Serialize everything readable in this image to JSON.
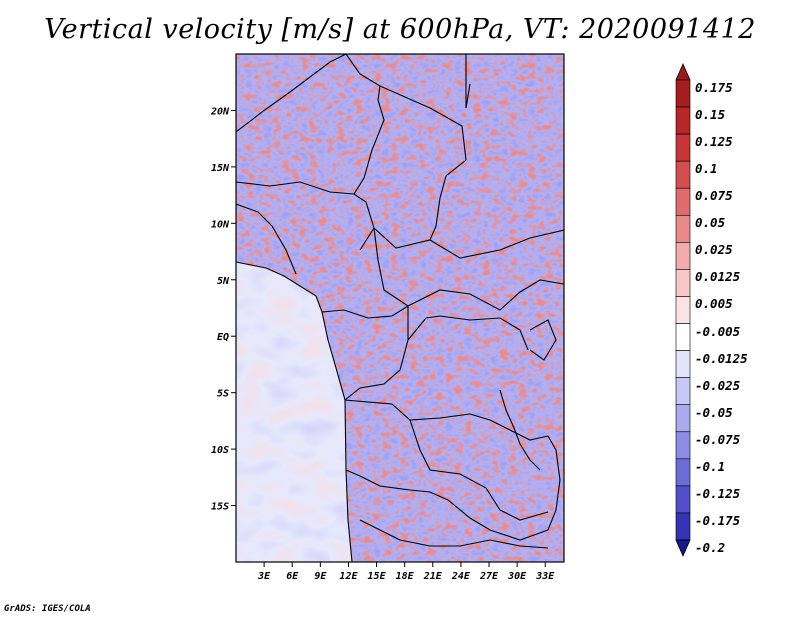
{
  "title": "Vertical velocity [m/s] at 600hPa, VT: 2020091412",
  "credit": "GrADS: IGES/COLA",
  "colors": {
    "frame": "#000000",
    "ocean_base": "#e6e8fb",
    "land_base": "#b3b0f2"
  },
  "map": {
    "lon_range": [
      0,
      35
    ],
    "lat_range": [
      -20,
      25
    ],
    "lat_ticks": [
      {
        "value": 20,
        "label": "20N"
      },
      {
        "value": 15,
        "label": "15N"
      },
      {
        "value": 10,
        "label": "10N"
      },
      {
        "value": 5,
        "label": "5N"
      },
      {
        "value": 0,
        "label": "EQ"
      },
      {
        "value": -5,
        "label": "5S"
      },
      {
        "value": -10,
        "label": "10S"
      },
      {
        "value": -15,
        "label": "15S"
      }
    ],
    "lon_ticks": [
      {
        "value": 3,
        "label": "3E"
      },
      {
        "value": 6,
        "label": "6E"
      },
      {
        "value": 9,
        "label": "9E"
      },
      {
        "value": 12,
        "label": "12E"
      },
      {
        "value": 15,
        "label": "15E"
      },
      {
        "value": 18,
        "label": "18E"
      },
      {
        "value": 21,
        "label": "21E"
      },
      {
        "value": 24,
        "label": "24E"
      },
      {
        "value": 27,
        "label": "27E"
      },
      {
        "value": 30,
        "label": "30E"
      },
      {
        "value": 33,
        "label": "33E"
      }
    ]
  },
  "colorbar": {
    "levels": [
      {
        "label": "0.175",
        "color": "#a51d1d"
      },
      {
        "label": "0.15",
        "color": "#b62727"
      },
      {
        "label": "0.125",
        "color": "#c63636"
      },
      {
        "label": "0.1",
        "color": "#d54d4d"
      },
      {
        "label": "0.075",
        "color": "#e06b6b"
      },
      {
        "label": "0.05",
        "color": "#e98a8a"
      },
      {
        "label": "0.025",
        "color": "#f2aaaa"
      },
      {
        "label": "0.0125",
        "color": "#f8c8c8"
      },
      {
        "label": "0.005",
        "color": "#fce3e3"
      },
      {
        "label": "-0.005",
        "color": "#ffffff"
      },
      {
        "label": "-0.0125",
        "color": "#e3e3fb"
      },
      {
        "label": "-0.025",
        "color": "#c8c8f6"
      },
      {
        "label": "-0.05",
        "color": "#aaaaef"
      },
      {
        "label": "-0.075",
        "color": "#8c8ce6"
      },
      {
        "label": "-0.1",
        "color": "#6d6dda"
      },
      {
        "label": "-0.125",
        "color": "#4f4fcb"
      },
      {
        "label": "-0.175",
        "color": "#3333b6"
      },
      {
        "label": "-0.2",
        "color": "#1f1f9c"
      }
    ],
    "over_color": "#9b1a1a",
    "under_color": "#17178e"
  }
}
